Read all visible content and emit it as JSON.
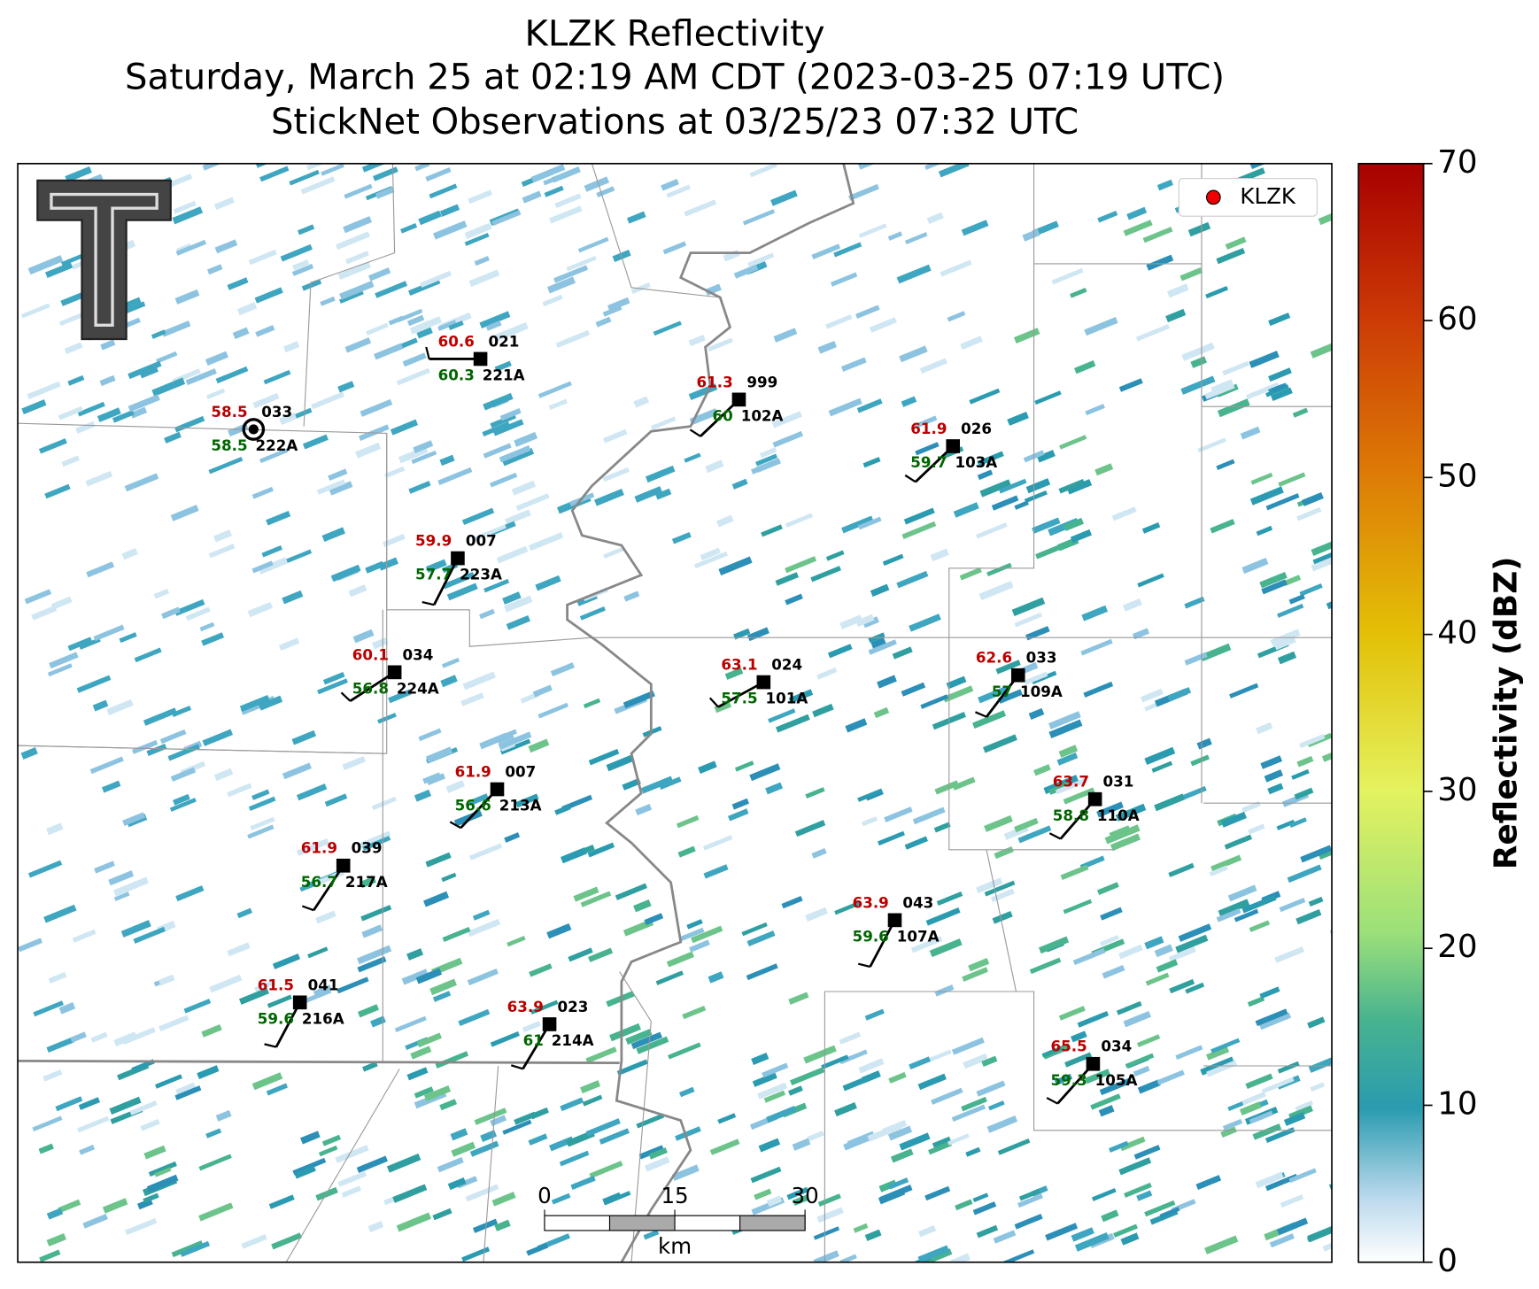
{
  "title": [
    "KLZK Reflectivity",
    "Saturday, March 25 at 02:19 AM CDT (2023-03-25 07:19 UTC)",
    "StickNet Observations at 03/25/23 07:32 UTC"
  ],
  "legend": "KLZK",
  "colorbar": {
    "label": "Reflectivity (dBZ)",
    "lim": [
      0,
      70
    ],
    "ticks": [
      0,
      10,
      20,
      30,
      40,
      50,
      60,
      70
    ]
  },
  "scalebar": {
    "ticks": [
      0,
      15,
      30
    ],
    "unit": "km"
  },
  "stations": [
    {
      "temp": 58.5,
      "dewpoint": 58.5,
      "pressure": "033",
      "id": "222A"
    },
    {
      "temp": 60.6,
      "dewpoint": 60.3,
      "pressure": "021",
      "id": "221A"
    },
    {
      "temp": 61.3,
      "dewpoint": 60.0,
      "pressure": "999",
      "id": "102A"
    },
    {
      "temp": 61.9,
      "dewpoint": 59.7,
      "pressure": "026",
      "id": "103A"
    },
    {
      "temp": 59.9,
      "dewpoint": 57.7,
      "pressure": "007",
      "id": "223A"
    },
    {
      "temp": 60.1,
      "dewpoint": 56.8,
      "pressure": "034",
      "id": "224A"
    },
    {
      "temp": 63.1,
      "dewpoint": 57.5,
      "pressure": "024",
      "id": "101A"
    },
    {
      "temp": 62.6,
      "dewpoint": 57.0,
      "pressure": "033",
      "id": "109A"
    },
    {
      "temp": 61.9,
      "dewpoint": 56.6,
      "pressure": "007",
      "id": "213A"
    },
    {
      "temp": 63.7,
      "dewpoint": 58.8,
      "pressure": "031",
      "id": "110A"
    },
    {
      "temp": 61.9,
      "dewpoint": 56.7,
      "pressure": "039",
      "id": "217A"
    },
    {
      "temp": 63.9,
      "dewpoint": 59.6,
      "pressure": "043",
      "id": "107A"
    },
    {
      "temp": 61.5,
      "dewpoint": 59.6,
      "pressure": "041",
      "id": "216A"
    },
    {
      "temp": 63.9,
      "dewpoint": 61.0,
      "pressure": "023",
      "id": "214A"
    },
    {
      "temp": 65.5,
      "dewpoint": 59.3,
      "pressure": "034",
      "id": "105A"
    }
  ]
}
